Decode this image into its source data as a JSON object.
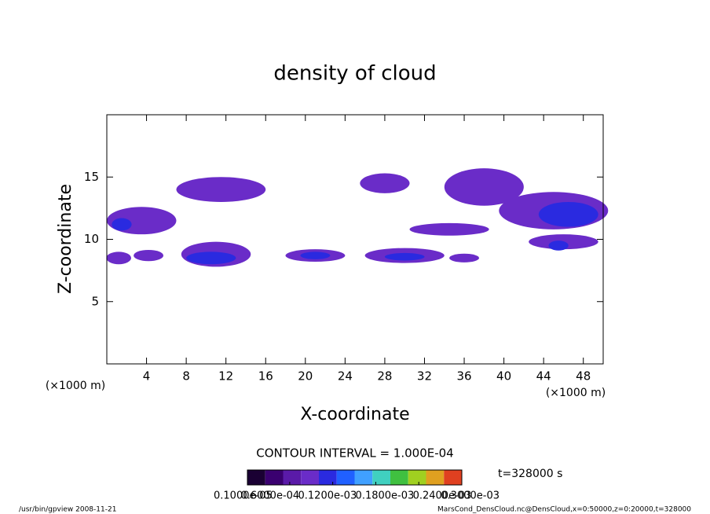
{
  "chart_data": {
    "type": "contour",
    "title": "density of cloud",
    "x_label": "X-coordinate",
    "y_label": "Z-coordinate",
    "x_unit": "(×1000 m)",
    "y_unit": "(×1000 m)",
    "contour_interval": "CONTOUR INTERVAL = 1.000E-04",
    "time": "t=328000 s",
    "footer_left": "/usr/bin/gpview  2008-11-21",
    "footer_right": "MarsCond_DensCloud.nc@DensCloud,x=0:50000,z=0:20000,t=328000",
    "xlim": [
      0,
      50
    ],
    "ylim": [
      0,
      20
    ],
    "xticks": [
      4,
      8,
      12,
      16,
      20,
      24,
      28,
      32,
      36,
      40,
      44,
      48
    ],
    "yticks": [
      5,
      10,
      15
    ],
    "x": [
      3.5,
      11.5,
      11,
      10.5,
      1.2,
      4.2,
      21,
      21,
      28,
      30,
      30,
      36,
      34.5,
      38,
      45,
      46.5,
      46,
      45.5,
      1.5
    ],
    "z": [
      11.5,
      14,
      8.8,
      8.5,
      8.5,
      8.7,
      8.7,
      8.7,
      14.5,
      8.7,
      8.6,
      8.5,
      10.8,
      14.2,
      12.3,
      12,
      9.8,
      9.5,
      11.2
    ],
    "width": [
      7,
      9,
      7,
      5,
      2.5,
      3,
      6,
      3,
      5,
      8,
      4,
      3,
      8,
      8,
      11,
      6,
      7,
      2,
      2
    ],
    "height": [
      2.2,
      2,
      2,
      1,
      1,
      0.9,
      1,
      0.6,
      1.6,
      1.2,
      0.6,
      0.7,
      1,
      3,
      3,
      2,
      1.2,
      0.8,
      1
    ],
    "values": [
      9e-05,
      9e-05,
      9e-05,
      0.00012,
      9e-05,
      9e-05,
      9e-05,
      0.00012,
      9e-05,
      9e-05,
      0.00012,
      9e-05,
      9e-05,
      9e-05,
      9e-05,
      0.00012,
      9e-05,
      0.00012,
      0.00012
    ],
    "colorbar": {
      "colors": [
        "#1a0033",
        "#3a0070",
        "#5a1aa8",
        "#6a2cc8",
        "#2a2ae0",
        "#2060ff",
        "#40a0ff",
        "#40d0c0",
        "#40c040",
        "#a0d020",
        "#e0a020",
        "#e04020"
      ],
      "lim": [
        1e-06,
        0.0003
      ],
      "ticks": [
        {
          "value": 1e-06,
          "label": "0.1000e-05"
        },
        {
          "value": 6e-05,
          "label": "0.6000e-04"
        },
        {
          "value": 0.00012,
          "label": "0.1200e-03"
        },
        {
          "value": 0.00018,
          "label": "0.1800e-03"
        },
        {
          "value": 0.00024,
          "label": "0.2400e-03"
        },
        {
          "value": 0.0003,
          "label": "0.3000e-03"
        }
      ]
    }
  }
}
